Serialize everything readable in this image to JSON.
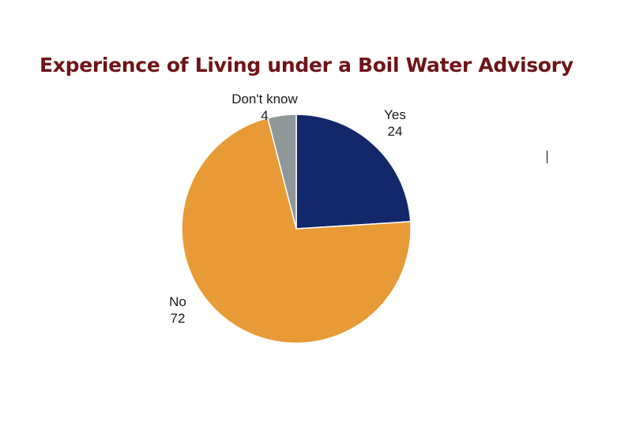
{
  "chart_data": {
    "type": "pie",
    "title": "Experience of Living under a Boil Water Advisory",
    "slices": [
      {
        "label": "Yes",
        "value": 24,
        "color": "#13286b"
      },
      {
        "label": "No",
        "value": 72,
        "color": "#e89a36"
      },
      {
        "label": "Don't know",
        "value": 4,
        "color": "#8f9799"
      }
    ],
    "start_angle_deg": 0,
    "direction": "clockwise",
    "legend": "none",
    "data_labels": "outside"
  }
}
